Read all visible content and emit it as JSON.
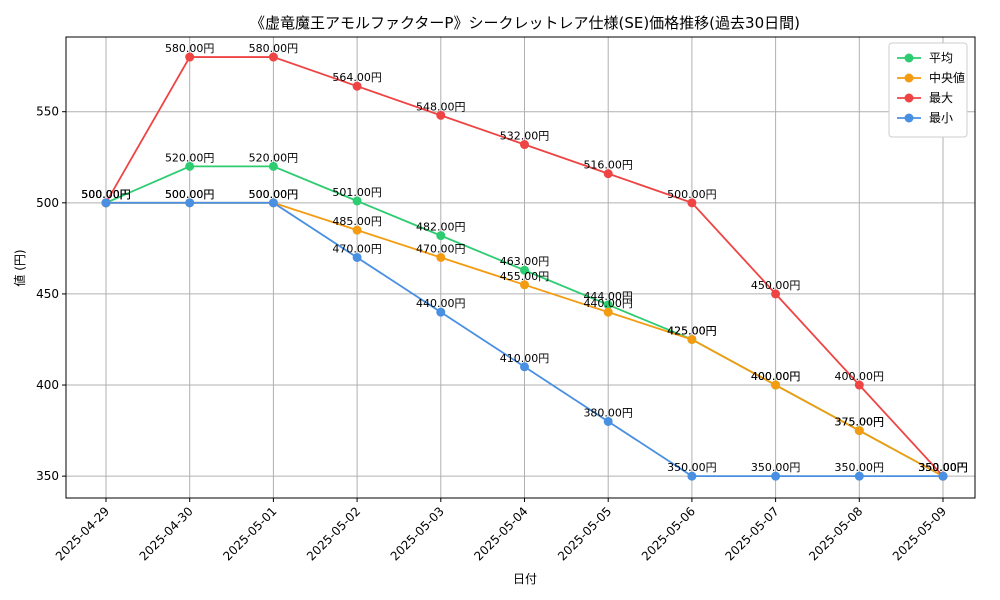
{
  "chart_data": {
    "type": "line",
    "title": "《虚竜魔王アモルファクターP》シークレットレア仕様(SE)価格推移(過去30日間)",
    "xlabel": "日付",
    "ylabel": "値 (円)",
    "categories": [
      "2025-04-29",
      "2025-04-30",
      "2025-05-01",
      "2025-05-02",
      "2025-05-03",
      "2025-05-04",
      "2025-05-05",
      "2025-05-06",
      "2025-05-07",
      "2025-05-08",
      "2025-05-09"
    ],
    "ylim": [
      338,
      591
    ],
    "yticks": [
      350,
      400,
      450,
      500,
      550
    ],
    "grid": true,
    "legend_position": "top-right",
    "value_suffix": "円",
    "series": [
      {
        "name": "平均",
        "color": "#2ecc71",
        "values": [
          500,
          520,
          520,
          501,
          482,
          463,
          444,
          425,
          400,
          375,
          350
        ]
      },
      {
        "name": "中央値",
        "color": "#f39c12",
        "values": [
          500,
          500,
          500,
          485,
          470,
          455,
          440,
          425,
          400,
          375,
          350
        ]
      },
      {
        "name": "最大",
        "color": "#ef4444",
        "values": [
          500,
          580,
          580,
          564,
          548,
          532,
          516,
          500,
          450,
          400,
          350
        ]
      },
      {
        "name": "最小",
        "color": "#4a90e2",
        "values": [
          500,
          500,
          500,
          470,
          440,
          410,
          380,
          350,
          350,
          350,
          350
        ]
      }
    ]
  }
}
